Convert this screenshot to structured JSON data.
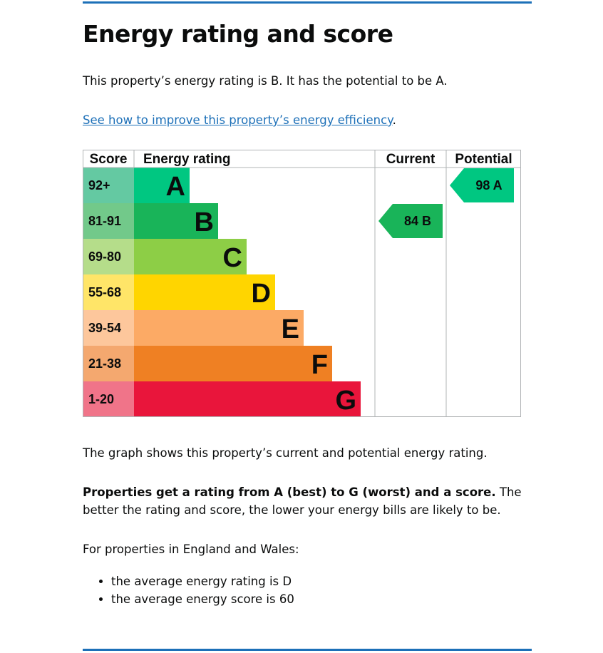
{
  "page": {
    "title": "Energy rating and score",
    "intro": "This property’s energy rating is B. It has the potential to be A.",
    "link_text": "See how to improve this property’s energy efficiency",
    "link_suffix": ".",
    "graph_note": "The graph shows this property’s current and potential energy rating.",
    "range_note_bold": "Properties get a rating from A (best) to G (worst) and a score.",
    "range_note_rest": " The better the rating and score, the lower your energy bills are likely to be.",
    "avg_title": "For properties in England and Wales:",
    "avg_items": [
      "the average energy rating is D",
      "the average energy score is 60"
    ]
  },
  "chart_data": {
    "type": "bar",
    "headers": {
      "score": "Score",
      "rating": "Energy rating",
      "current": "Current",
      "potential": "Potential"
    },
    "bands": [
      {
        "letter": "A",
        "range": "92+",
        "color": "#00c781",
        "score_bg": "#64c9a2"
      },
      {
        "letter": "B",
        "range": "81-91",
        "color": "#19b459",
        "score_bg": "#72c98a"
      },
      {
        "letter": "C",
        "range": "69-80",
        "color": "#8dce46",
        "score_bg": "#b5dd8a"
      },
      {
        "letter": "D",
        "range": "55-68",
        "color": "#ffd500",
        "score_bg": "#ffe568"
      },
      {
        "letter": "E",
        "range": "39-54",
        "color": "#fcaa65",
        "score_bg": "#fdc79c"
      },
      {
        "letter": "F",
        "range": "21-38",
        "color": "#ef8023",
        "score_bg": "#f4a86f"
      },
      {
        "letter": "G",
        "range": "1-20",
        "color": "#e9153b",
        "score_bg": "#f07489"
      }
    ],
    "current": {
      "score": 84,
      "band": "B",
      "label": "84 B"
    },
    "potential": {
      "score": 98,
      "band": "A",
      "label": "98 A"
    }
  }
}
